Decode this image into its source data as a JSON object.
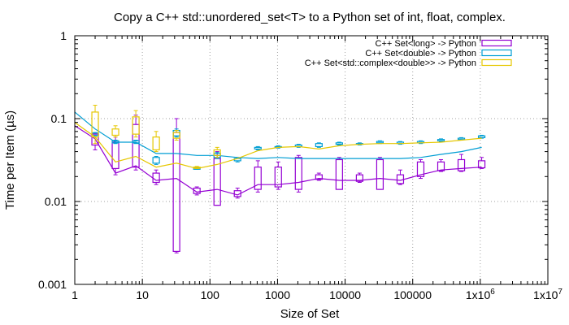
{
  "chart_data": {
    "type": "box-line",
    "title": "Copy a C++ std::unordered_set<T> to a Python set of int, float, complex.",
    "xlabel": "Size of Set",
    "ylabel": "Time per Item (µs)",
    "xscale": "log",
    "yscale": "log",
    "xlim": [
      1,
      10000000
    ],
    "ylim": [
      0.001,
      1
    ],
    "grid": true,
    "legend_position": "top-right",
    "x_ticks": [
      {
        "value": 1,
        "label": "1"
      },
      {
        "value": 10,
        "label": "10"
      },
      {
        "value": 100,
        "label": "100"
      },
      {
        "value": 1000,
        "label": "1000"
      },
      {
        "value": 10000,
        "label": "10000"
      },
      {
        "value": 100000,
        "label": "100000"
      },
      {
        "value": 1000000,
        "label": "1x10^6"
      },
      {
        "value": 10000000,
        "label": "1x10^7"
      }
    ],
    "y_ticks": [
      {
        "value": 0.001,
        "label": "0.001"
      },
      {
        "value": 0.01,
        "label": "0.01"
      },
      {
        "value": 0.1,
        "label": "0.1"
      },
      {
        "value": 1,
        "label": "1"
      }
    ],
    "series": [
      {
        "name": "C++ Set<long> -> Python",
        "color": "#9400d3",
        "line_points": [
          [
            1,
            0.082
          ],
          [
            2,
            0.057
          ],
          [
            4,
            0.022
          ],
          [
            8,
            0.027
          ],
          [
            16,
            0.018
          ],
          [
            32,
            0.019
          ],
          [
            64,
            0.013
          ],
          [
            128,
            0.014
          ],
          [
            256,
            0.012
          ],
          [
            512,
            0.016
          ],
          [
            1024,
            0.016
          ],
          [
            2048,
            0.017
          ],
          [
            4096,
            0.019
          ],
          [
            8192,
            0.018
          ],
          [
            16384,
            0.018
          ],
          [
            32768,
            0.019
          ],
          [
            65536,
            0.018
          ],
          [
            131072,
            0.021
          ],
          [
            262144,
            0.024
          ],
          [
            524288,
            0.025
          ],
          [
            1048576,
            0.026
          ]
        ],
        "boxes": [
          {
            "x": 2,
            "low": 0.042,
            "q1": 0.048,
            "q3": 0.065,
            "high": 0.067
          },
          {
            "x": 4,
            "low": 0.021,
            "q1": 0.025,
            "q3": 0.052,
            "high": 0.06
          },
          {
            "x": 8,
            "low": 0.024,
            "q1": 0.026,
            "q3": 0.085,
            "high": 0.11
          },
          {
            "x": 16,
            "low": 0.016,
            "q1": 0.017,
            "q3": 0.022,
            "high": 0.024
          },
          {
            "x": 32,
            "low": 0.0024,
            "q1": 0.0025,
            "q3": 0.068,
            "high": 0.1
          },
          {
            "x": 64,
            "low": 0.012,
            "q1": 0.0125,
            "q3": 0.0145,
            "high": 0.015
          },
          {
            "x": 128,
            "low": 0.009,
            "q1": 0.009,
            "q3": 0.033,
            "high": 0.04
          },
          {
            "x": 256,
            "low": 0.011,
            "q1": 0.0115,
            "q3": 0.0135,
            "high": 0.0145
          },
          {
            "x": 512,
            "low": 0.013,
            "q1": 0.014,
            "q3": 0.026,
            "high": 0.031
          },
          {
            "x": 1024,
            "low": 0.014,
            "q1": 0.015,
            "q3": 0.026,
            "high": 0.03
          },
          {
            "x": 2048,
            "low": 0.013,
            "q1": 0.014,
            "q3": 0.034,
            "high": 0.036
          },
          {
            "x": 4096,
            "low": 0.018,
            "q1": 0.0185,
            "q3": 0.021,
            "high": 0.022
          },
          {
            "x": 8192,
            "low": 0.014,
            "q1": 0.014,
            "q3": 0.032,
            "high": 0.034
          },
          {
            "x": 16384,
            "low": 0.017,
            "q1": 0.0175,
            "q3": 0.021,
            "high": 0.022
          },
          {
            "x": 32768,
            "low": 0.014,
            "q1": 0.014,
            "q3": 0.032,
            "high": 0.034
          },
          {
            "x": 65536,
            "low": 0.016,
            "q1": 0.0165,
            "q3": 0.021,
            "high": 0.024
          },
          {
            "x": 131072,
            "low": 0.019,
            "q1": 0.02,
            "q3": 0.03,
            "high": 0.032
          },
          {
            "x": 262144,
            "low": 0.023,
            "q1": 0.0235,
            "q3": 0.03,
            "high": 0.032
          },
          {
            "x": 524288,
            "low": 0.023,
            "q1": 0.0235,
            "q3": 0.032,
            "high": 0.037
          },
          {
            "x": 1048576,
            "low": 0.025,
            "q1": 0.0255,
            "q3": 0.031,
            "high": 0.034
          }
        ]
      },
      {
        "name": "C++ Set<double> -> Python",
        "color": "#009ed4",
        "line_points": [
          [
            1,
            0.12
          ],
          [
            2,
            0.075
          ],
          [
            4,
            0.052
          ],
          [
            8,
            0.052
          ],
          [
            16,
            0.038
          ],
          [
            32,
            0.038
          ],
          [
            64,
            0.036
          ],
          [
            128,
            0.036
          ],
          [
            256,
            0.034
          ],
          [
            512,
            0.033
          ],
          [
            1024,
            0.034
          ],
          [
            2048,
            0.033
          ],
          [
            4096,
            0.033
          ],
          [
            8192,
            0.033
          ],
          [
            16384,
            0.033
          ],
          [
            32768,
            0.033
          ],
          [
            65536,
            0.033
          ],
          [
            131072,
            0.034
          ],
          [
            262144,
            0.037
          ],
          [
            524288,
            0.04
          ],
          [
            1048576,
            0.045
          ]
        ],
        "boxes": [
          {
            "x": 2,
            "low": 0.062,
            "q1": 0.063,
            "q3": 0.067,
            "high": 0.068
          },
          {
            "x": 4,
            "low": 0.05,
            "q1": 0.051,
            "q3": 0.054,
            "high": 0.055
          },
          {
            "x": 8,
            "low": 0.05,
            "q1": 0.051,
            "q3": 0.054,
            "high": 0.055
          },
          {
            "x": 16,
            "low": 0.028,
            "q1": 0.029,
            "q3": 0.034,
            "high": 0.035
          },
          {
            "x": 32,
            "low": 0.06,
            "q1": 0.062,
            "q3": 0.072,
            "high": 0.075
          },
          {
            "x": 64,
            "low": 0.0245,
            "q1": 0.0245,
            "q3": 0.0255,
            "high": 0.026
          },
          {
            "x": 128,
            "low": 0.033,
            "q1": 0.034,
            "q3": 0.038,
            "high": 0.039
          },
          {
            "x": 256,
            "low": 0.03,
            "q1": 0.031,
            "q3": 0.033,
            "high": 0.034
          },
          {
            "x": 512,
            "low": 0.042,
            "q1": 0.043,
            "q3": 0.045,
            "high": 0.046
          },
          {
            "x": 1024,
            "low": 0.044,
            "q1": 0.045,
            "q3": 0.046,
            "high": 0.047
          },
          {
            "x": 2048,
            "low": 0.045,
            "q1": 0.046,
            "q3": 0.048,
            "high": 0.049
          },
          {
            "x": 4096,
            "low": 0.045,
            "q1": 0.046,
            "q3": 0.05,
            "high": 0.051
          },
          {
            "x": 8192,
            "low": 0.048,
            "q1": 0.049,
            "q3": 0.051,
            "high": 0.052
          },
          {
            "x": 16384,
            "low": 0.048,
            "q1": 0.049,
            "q3": 0.05,
            "high": 0.051
          },
          {
            "x": 32768,
            "low": 0.05,
            "q1": 0.051,
            "q3": 0.053,
            "high": 0.054
          },
          {
            "x": 65536,
            "low": 0.049,
            "q1": 0.05,
            "q3": 0.052,
            "high": 0.053
          },
          {
            "x": 131072,
            "low": 0.05,
            "q1": 0.051,
            "q3": 0.053,
            "high": 0.054
          },
          {
            "x": 262144,
            "low": 0.053,
            "q1": 0.054,
            "q3": 0.056,
            "high": 0.057
          },
          {
            "x": 524288,
            "low": 0.055,
            "q1": 0.056,
            "q3": 0.058,
            "high": 0.059
          },
          {
            "x": 1048576,
            "low": 0.058,
            "q1": 0.059,
            "q3": 0.062,
            "high": 0.063
          }
        ]
      },
      {
        "name": "C++ Set<std::complex<double>> -> Python",
        "color": "#e6c700",
        "line_points": [
          [
            1,
            0.09
          ],
          [
            2,
            0.06
          ],
          [
            4,
            0.03
          ],
          [
            8,
            0.035
          ],
          [
            16,
            0.026
          ],
          [
            32,
            0.029
          ],
          [
            64,
            0.025
          ],
          [
            128,
            0.028
          ],
          [
            256,
            0.033
          ],
          [
            512,
            0.041
          ],
          [
            1024,
            0.045
          ],
          [
            2048,
            0.046
          ],
          [
            4096,
            0.043
          ],
          [
            8192,
            0.047
          ],
          [
            16384,
            0.049
          ],
          [
            32768,
            0.05
          ],
          [
            65536,
            0.05
          ],
          [
            131072,
            0.051
          ],
          [
            262144,
            0.052
          ],
          [
            524288,
            0.055
          ],
          [
            1048576,
            0.058
          ]
        ],
        "boxes": [
          {
            "x": 2,
            "low": 0.05,
            "q1": 0.06,
            "q3": 0.12,
            "high": 0.145
          },
          {
            "x": 4,
            "low": 0.06,
            "q1": 0.063,
            "q3": 0.075,
            "high": 0.082
          },
          {
            "x": 8,
            "low": 0.06,
            "q1": 0.065,
            "q3": 0.105,
            "high": 0.125
          },
          {
            "x": 16,
            "low": 0.04,
            "q1": 0.042,
            "q3": 0.06,
            "high": 0.07
          },
          {
            "x": 32,
            "low": 0.055,
            "q1": 0.058,
            "q3": 0.068,
            "high": 0.072
          },
          {
            "x": 64,
            "low": 0.025,
            "q1": 0.0252,
            "q3": 0.026,
            "high": 0.0265
          },
          {
            "x": 128,
            "low": 0.034,
            "q1": 0.036,
            "q3": 0.042,
            "high": 0.045
          }
        ]
      }
    ]
  }
}
